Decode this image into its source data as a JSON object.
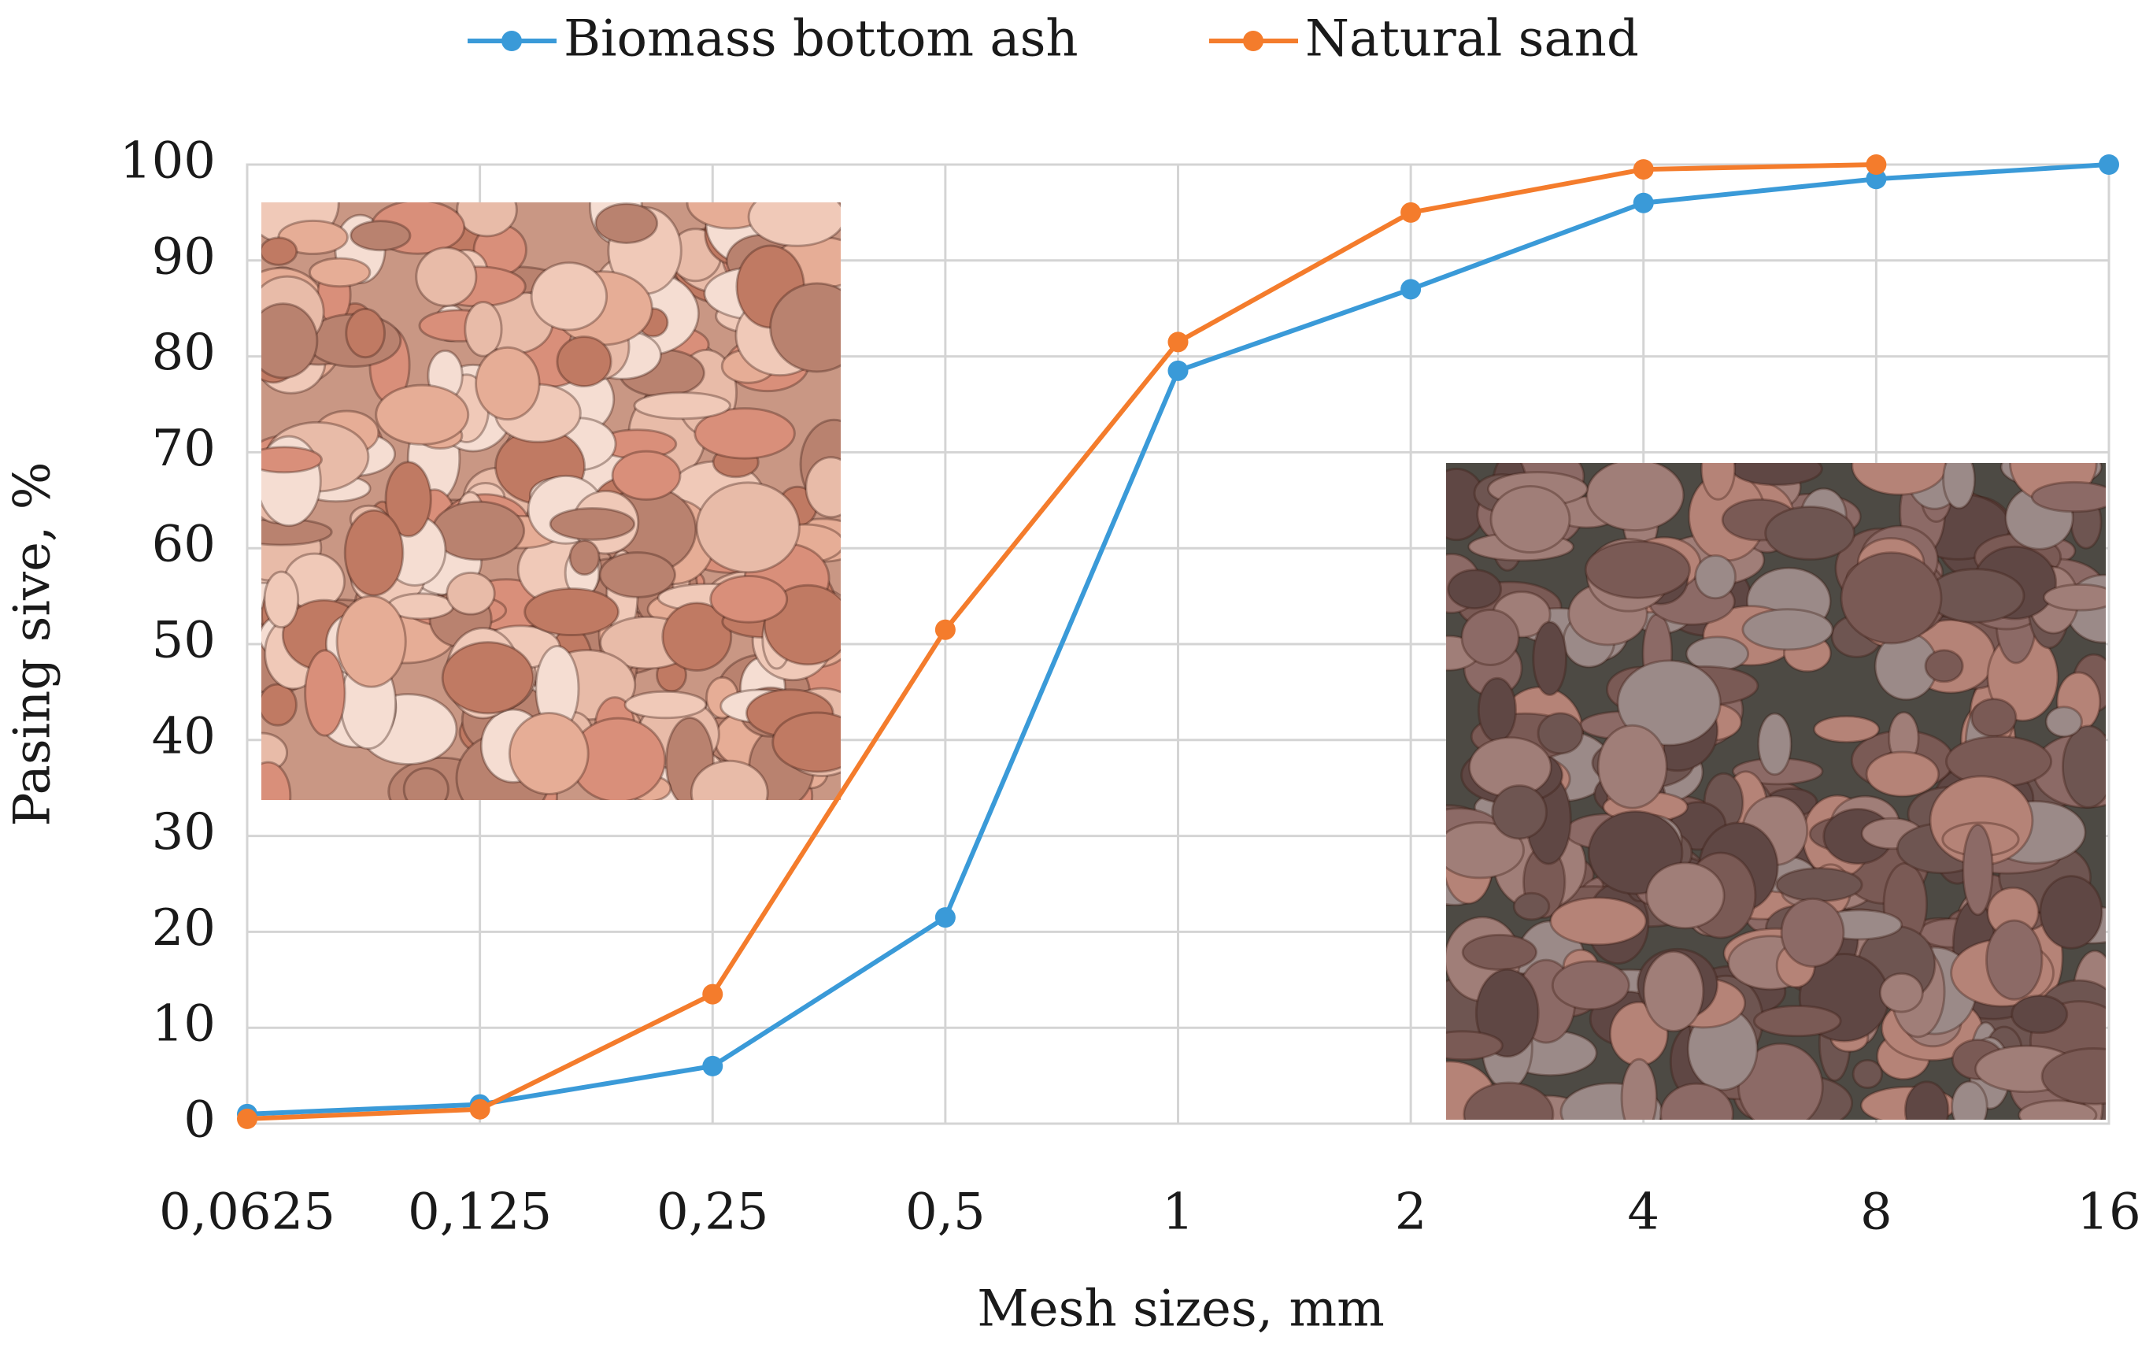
{
  "chart_data": {
    "type": "line",
    "x_label": "Mesh sizes, mm",
    "y_label": "Pasing sive, %",
    "categories": [
      "0,0625",
      "0,125",
      "0,25",
      "0,5",
      "1",
      "2",
      "4",
      "8",
      "16"
    ],
    "series": [
      {
        "name": "Biomass bottom ash",
        "color": "#3a9ad8",
        "values": [
          1,
          2,
          6,
          21.5,
          78.5,
          87,
          96,
          98.5,
          100
        ]
      },
      {
        "name": "Natural sand",
        "color": "#f47c2c",
        "values": [
          0.5,
          1.5,
          13.5,
          51.5,
          81.5,
          95,
          99.5,
          100,
          null
        ]
      }
    ],
    "ylim": [
      0,
      100
    ],
    "yticks": [
      0,
      10,
      20,
      30,
      40,
      50,
      60,
      70,
      80,
      90,
      100
    ],
    "grid": true,
    "legend": "top"
  }
}
